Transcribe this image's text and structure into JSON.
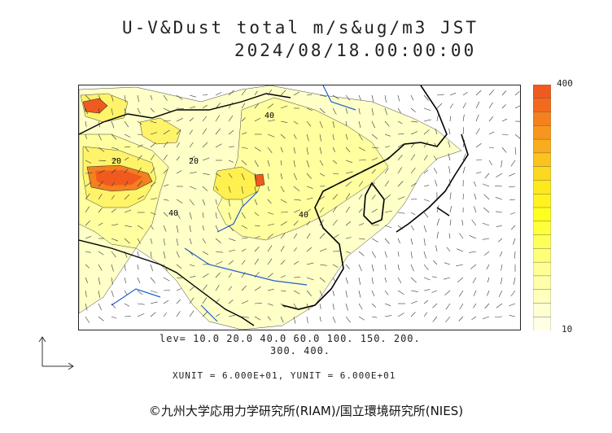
{
  "title": {
    "line1": "U-V&Dust total m/s&ug/m3 JST",
    "line2": "2024/08/18.00:00:00"
  },
  "colorbar": {
    "max_label": "400",
    "min_label": "10",
    "colors": [
      "#f05a1e",
      "#f26a1e",
      "#f4801e",
      "#f6961e",
      "#f8ac1e",
      "#fac31e",
      "#fcd81e",
      "#fee81e",
      "#fff21e",
      "#ffff1e",
      "#ffff3c",
      "#ffff5a",
      "#ffff78",
      "#ffff96",
      "#ffffaa",
      "#ffffbe",
      "#ffffd2",
      "#ffffe6"
    ]
  },
  "levels_text": {
    "line1": "lev= 10.0 20.0 40.0 60.0 100. 150. 200.",
    "line2": "300. 400."
  },
  "units_text": "XUNIT = 6.000E+01, YUNIT = 6.000E+01",
  "copyright": "©九州大学応用力学研究所(RIAM)/国立環境研究所(NIES)",
  "map": {
    "contour_labels": [
      "40",
      "40",
      "20",
      "20",
      "40"
    ]
  }
}
